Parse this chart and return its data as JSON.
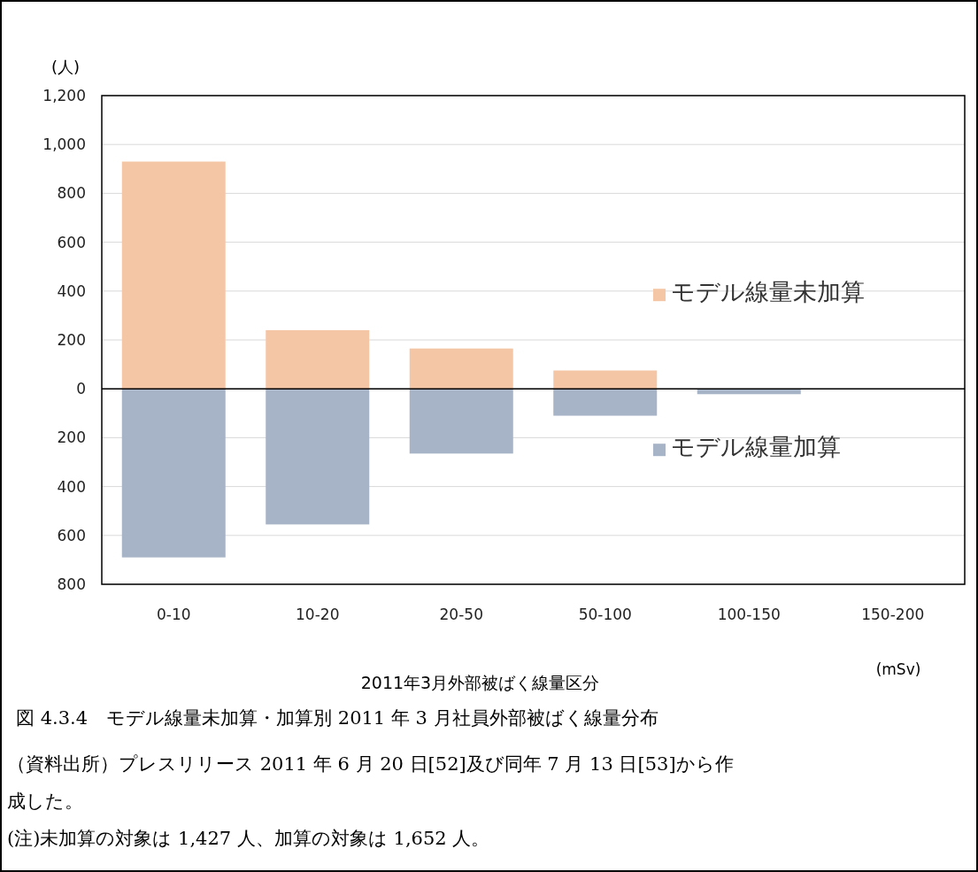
{
  "chart_data": {
    "type": "bar",
    "stacked": true,
    "title": "図 4.3.4　モデル線量未加算・加算別 2011 年 3 月社員外部被ばく線量分布",
    "xlabel": "2011年3月外部被ばく線量区分",
    "ylabel": "(人)",
    "categories": [
      "0-10",
      "10-20",
      "20-50",
      "50-100",
      "100-150",
      "150-200"
    ],
    "series": [
      {
        "name": "モデル線量未加算",
        "color": "#f5c6a5",
        "values": [
          930,
          240,
          165,
          75,
          null,
          null
        ]
      },
      {
        "name": "モデル線量加算",
        "color": "#a7b3c6",
        "values": [
          -690,
          -555,
          -265,
          -110,
          -22,
          null
        ]
      }
    ],
    "ylim": [
      -800,
      1200
    ],
    "yticks": [
      {
        "value": 1200,
        "label": "1,200"
      },
      {
        "value": 1000,
        "label": "1,000"
      },
      800,
      600,
      400,
      200,
      0,
      {
        "value": -200,
        "label": "200"
      },
      {
        "value": -400,
        "label": "400"
      },
      {
        "value": -600,
        "label": "600"
      },
      {
        "value": -800,
        "label": "800"
      }
    ],
    "grid": "y",
    "legend": "right",
    "annotations": [
      "(mSv)",
      "（資料出所）プレスリリース 2011 年 6 月 20 日[52]及び同年 7 月 13 日[53]から作成した。",
      "(注)未加算の対象は 1,427 人、加算の対象は 1,652 人。"
    ]
  }
}
